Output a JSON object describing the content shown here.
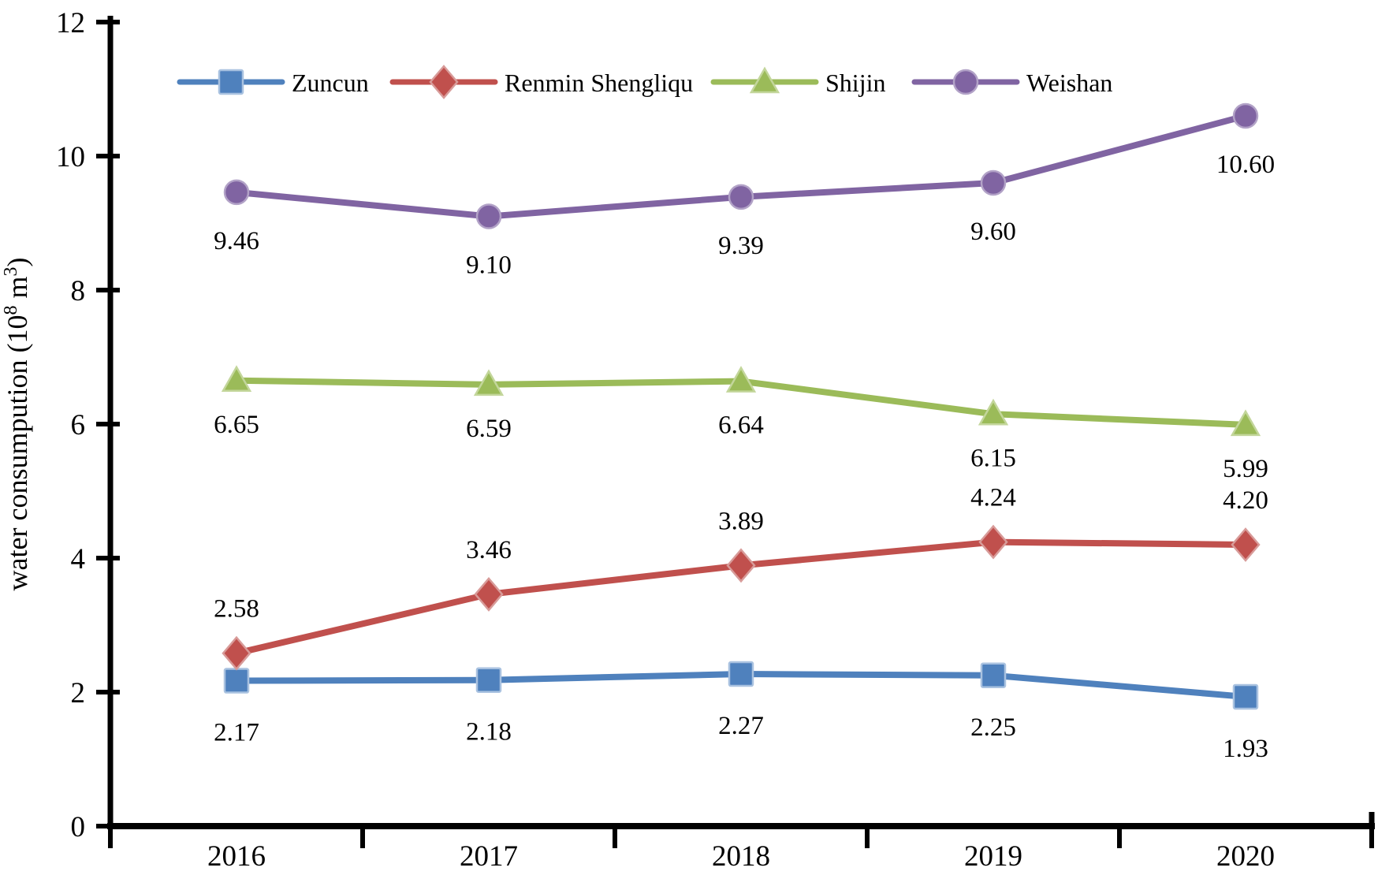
{
  "chart_data": {
    "type": "line",
    "title": "",
    "xlabel": "",
    "ylabel": "water consumpution (10⁸ m³)",
    "ylabel_rich": {
      "prefix": "water consumpution (10",
      "superscript_1": "8",
      "middle": " m",
      "superscript_2": "3",
      "suffix": ")"
    },
    "categories": [
      "2016",
      "2017",
      "2018",
      "2019",
      "2020"
    ],
    "ylim": [
      0,
      12
    ],
    "ytick_interval": 2,
    "ytick_labels": [
      "0",
      "2",
      "4",
      "6",
      "8",
      "10",
      "12"
    ],
    "grid": false,
    "legend_position": "top",
    "axis_color": "#000000",
    "background_color": "#ffffff",
    "series": [
      {
        "name": "Zuncun",
        "marker": "square",
        "color": "#4F81BD",
        "marker_outline": "#A9C2E0",
        "values": [
          2.17,
          2.18,
          2.27,
          2.25,
          1.93
        ],
        "data_labels": [
          "2.17",
          "2.18",
          "2.27",
          "2.25",
          "1.93"
        ],
        "label_side": "below"
      },
      {
        "name": "Renmin Shengliqu",
        "marker": "diamond",
        "color": "#C0504D",
        "marker_outline": "#D89B99",
        "values": [
          2.58,
          3.46,
          3.89,
          4.24,
          4.2
        ],
        "data_labels": [
          "2.58",
          "3.46",
          "3.89",
          "4.24",
          "4.20"
        ],
        "label_side": "above"
      },
      {
        "name": "Shijin",
        "marker": "triangle",
        "color": "#9BBB59",
        "marker_outline": "#C3D69B",
        "values": [
          6.65,
          6.59,
          6.64,
          6.15,
          5.99
        ],
        "data_labels": [
          "6.65",
          "6.59",
          "6.64",
          "6.15",
          "5.99"
        ],
        "label_side": "below"
      },
      {
        "name": "Weishan",
        "marker": "circle",
        "color": "#8064A2",
        "marker_outline": "#B2A2C7",
        "values": [
          9.46,
          9.1,
          9.39,
          9.6,
          10.6
        ],
        "data_labels": [
          "9.46",
          "9.10",
          "9.39",
          "9.60",
          "10.60"
        ],
        "label_side": "below"
      }
    ]
  }
}
